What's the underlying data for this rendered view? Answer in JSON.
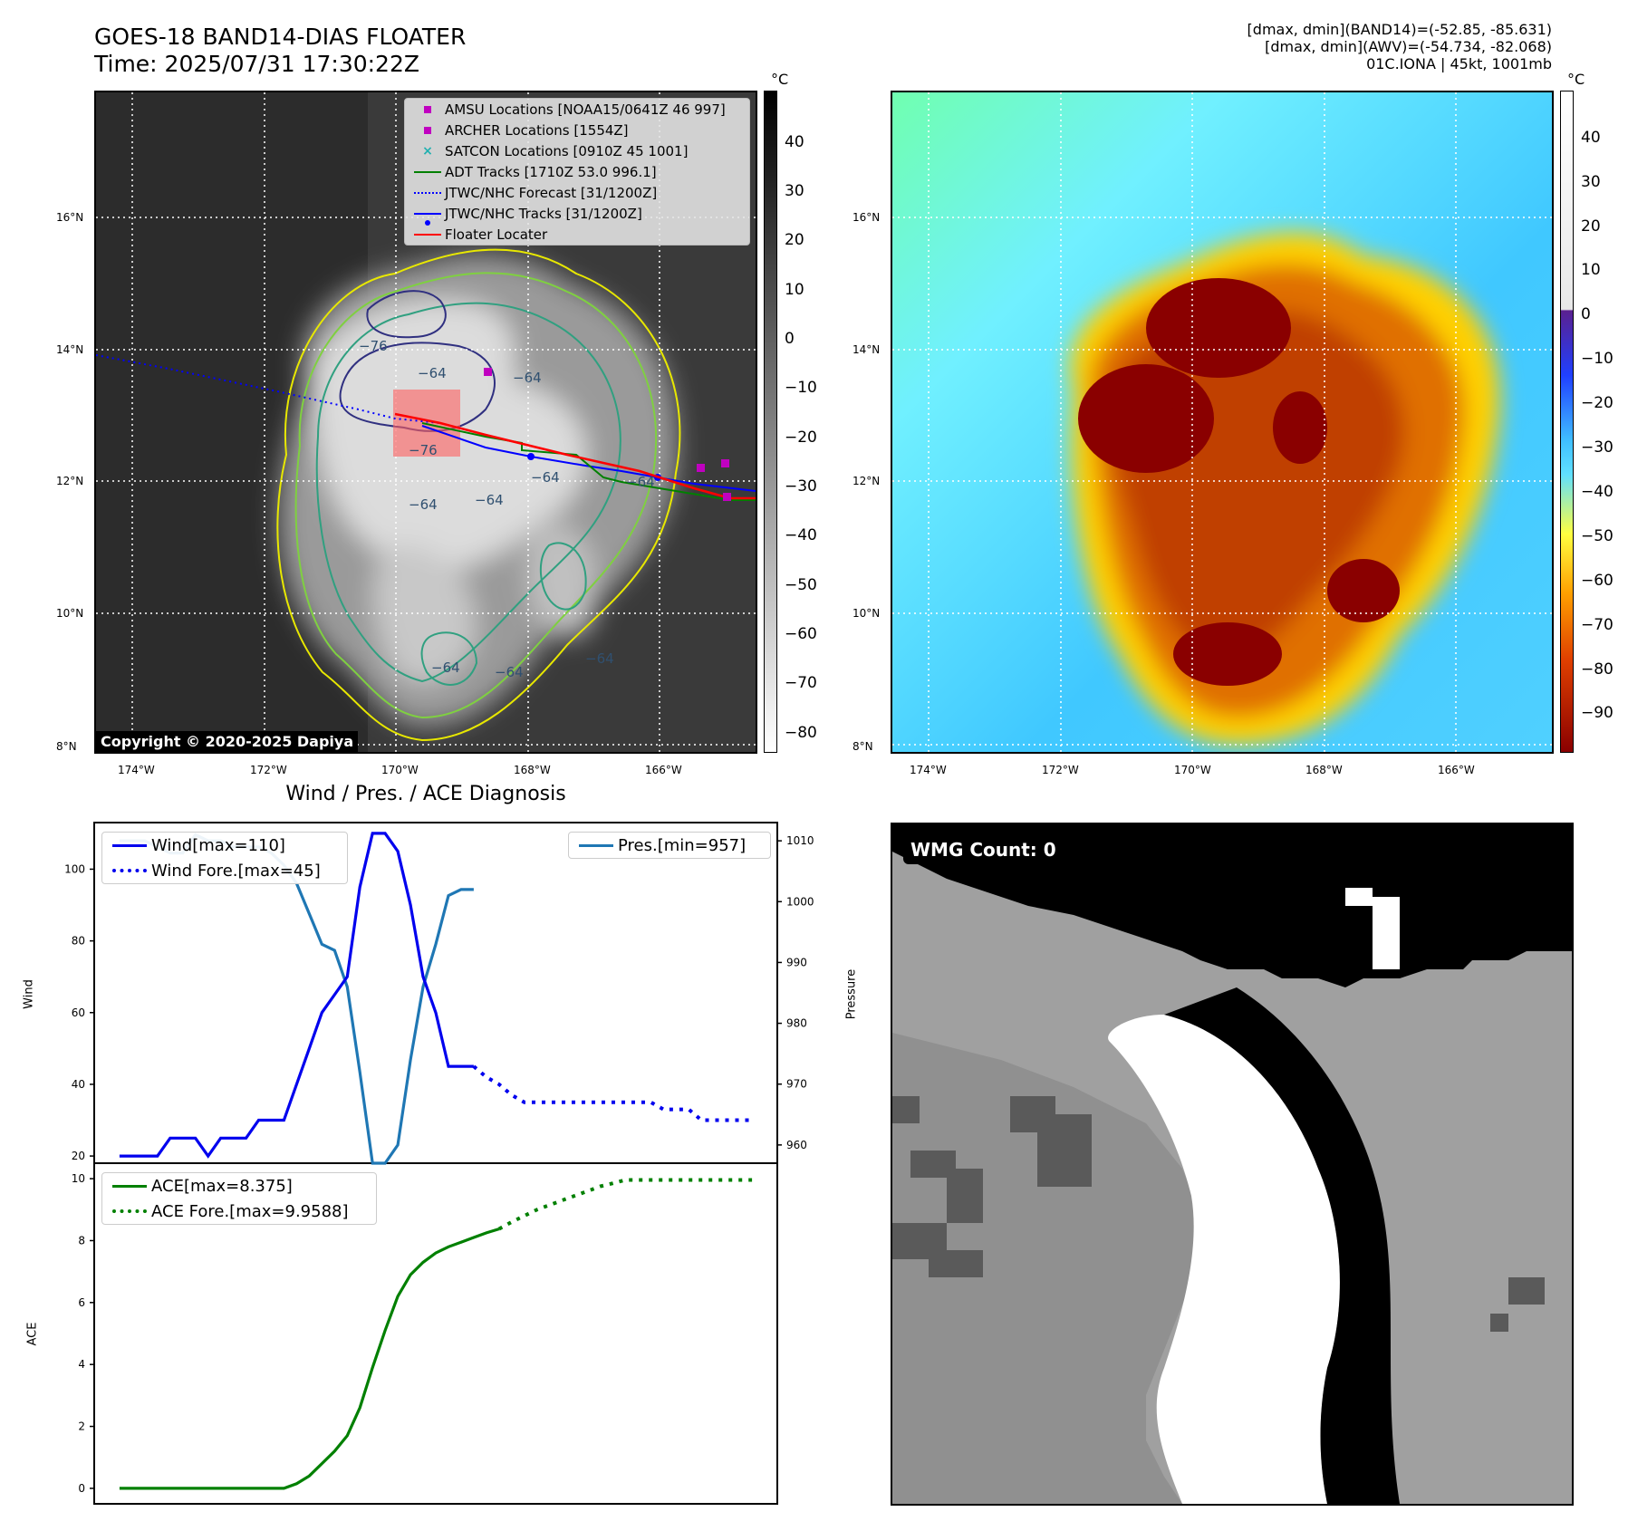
{
  "header": {
    "title_line1": "GOES-18 BAND14-DIAS FLOATER",
    "title_line2": "Time: 2025/07/31 17:30:22Z",
    "info_line1": "[dmax, dmin](BAND14)=(-52.85, -85.631)",
    "info_line2": "[dmax, dmin](AWV)=(-54.734, -82.068)",
    "info_line3": "01C.IONA | 45kt, 1001mb"
  },
  "map_axes": {
    "lat_ticks": [
      "16°N",
      "14°N",
      "12°N",
      "10°N",
      "8°N"
    ],
    "lon_ticks": [
      "174°W",
      "172°W",
      "170°W",
      "168°W",
      "166°W"
    ]
  },
  "ir_panel": {
    "colorbar_unit": "°C",
    "colorbar_ticks": [
      "40",
      "30",
      "20",
      "10",
      "0",
      "−10",
      "−20",
      "−30",
      "−40",
      "−50",
      "−60",
      "−70",
      "−80"
    ],
    "contour_labels": [
      "−76",
      "−64",
      "−64",
      "−76",
      "−64",
      "−64",
      "−64",
      "−64",
      "−64",
      "−64",
      "−64"
    ],
    "copyright": "Copyright © 2020-2025 Dapiya",
    "legend": [
      {
        "label": "AMSU Locations [NOAA15/0641Z 46 997]",
        "color": "#c000c0",
        "marker": "square"
      },
      {
        "label": "ARCHER Locations [1554Z]",
        "color": "#c000c0",
        "marker": "square"
      },
      {
        "label": "SATCON Locations [0910Z 45 1001]",
        "color": "#20b0b0",
        "marker": "x"
      },
      {
        "label": "ADT Tracks [1710Z 53.0 996.1]",
        "color": "#008000",
        "marker": "line"
      },
      {
        "label": "JTWC/NHC Forecast [31/1200Z]",
        "color": "#0000ff",
        "marker": "dotted"
      },
      {
        "label": "JTWC/NHC Tracks [31/1200Z]",
        "color": "#0000ff",
        "marker": "line-dot"
      },
      {
        "label": "Floater Locater",
        "color": "#ff0000",
        "marker": "line"
      }
    ]
  },
  "awv_panel": {
    "colorbar_unit": "°C",
    "colorbar_ticks": [
      "40",
      "30",
      "20",
      "10",
      "0",
      "−10",
      "−20",
      "−30",
      "−40",
      "−50",
      "−60",
      "−70",
      "−80",
      "−90"
    ]
  },
  "diagnosis": {
    "title": "Wind / Pres. / ACE Diagnosis",
    "wind_ylabel": "Wind",
    "pres_ylabel": "Pressure",
    "ace_ylabel": "ACE",
    "wind_ticks": [
      "100",
      "80",
      "60",
      "40",
      "20"
    ],
    "pres_ticks": [
      "1010",
      "1000",
      "990",
      "980",
      "970",
      "960"
    ],
    "ace_ticks": [
      "10",
      "8",
      "6",
      "4",
      "2",
      "0"
    ],
    "legend_wind": "Wind[max=110]",
    "legend_wind_fore": "Wind Fore.[max=45]",
    "legend_pres": "Pres.[min=957]",
    "legend_ace": "ACE[max=8.375]",
    "legend_ace_fore": "ACE Fore.[max=9.9588]"
  },
  "wmg_panel": {
    "label": "WMG Count: 0"
  },
  "colors": {
    "wind": "#0000ee",
    "pressure": "#1f77b4",
    "ace": "#008000"
  },
  "chart_data": [
    {
      "type": "line",
      "title": "Wind / Pres. / ACE Diagnosis",
      "ylabel": "Wind",
      "ylim": [
        18,
        113
      ],
      "x": [
        0,
        1,
        2,
        3,
        4,
        5,
        6,
        7,
        8,
        9,
        10,
        11,
        12,
        13,
        14,
        15,
        16,
        17,
        18,
        19,
        20,
        21,
        22,
        23,
        24,
        25,
        26,
        27,
        28,
        29,
        30,
        31,
        32,
        33,
        34,
        35,
        36,
        37,
        38,
        39,
        40,
        41,
        42,
        43,
        44,
        45,
        46,
        47,
        48,
        49,
        50
      ],
      "series": [
        {
          "name": "Wind[max=110]",
          "style": "solid",
          "values": [
            20,
            20,
            20,
            20,
            25,
            25,
            25,
            20,
            25,
            25,
            25,
            30,
            30,
            30,
            40,
            50,
            60,
            65,
            70,
            95,
            110,
            110,
            105,
            90,
            70,
            60,
            45,
            45,
            45,
            null,
            null,
            null,
            null,
            null,
            null,
            null,
            null,
            null,
            null,
            null,
            null,
            null,
            null,
            null,
            null,
            null,
            null,
            null,
            null,
            null,
            null
          ]
        },
        {
          "name": "Wind Fore.[max=45]",
          "style": "dotted",
          "values": [
            null,
            null,
            null,
            null,
            null,
            null,
            null,
            null,
            null,
            null,
            null,
            null,
            null,
            null,
            null,
            null,
            null,
            null,
            null,
            null,
            null,
            null,
            null,
            null,
            null,
            null,
            null,
            null,
            45,
            42,
            40,
            37,
            35,
            35,
            35,
            35,
            35,
            35,
            35,
            35,
            35,
            35,
            35,
            33,
            33,
            33,
            30,
            30,
            30,
            30,
            30
          ]
        }
      ]
    },
    {
      "type": "line",
      "ylabel": "Pressure",
      "ylim": [
        957,
        1013
      ],
      "x": [
        0,
        1,
        2,
        3,
        4,
        5,
        6,
        7,
        8,
        9,
        10,
        11,
        12,
        13,
        14,
        15,
        16,
        17,
        18,
        19,
        20,
        21,
        22,
        23,
        24,
        25,
        26,
        27,
        28
      ],
      "series": [
        {
          "name": "Pres.[min=957]",
          "style": "solid",
          "values": [
            1010,
            1010,
            1010,
            1009,
            1008,
            1008,
            1011,
            1010,
            1010,
            1009,
            1009,
            1009,
            1008,
            1006,
            1003,
            998,
            993,
            992,
            986,
            972,
            957,
            957,
            960,
            974,
            986,
            993,
            1001,
            1002,
            1002
          ]
        }
      ]
    },
    {
      "type": "line",
      "ylabel": "ACE",
      "ylim": [
        -0.5,
        10.5
      ],
      "x": [
        0,
        1,
        2,
        3,
        4,
        5,
        6,
        7,
        8,
        9,
        10,
        11,
        12,
        13,
        14,
        15,
        16,
        17,
        18,
        19,
        20,
        21,
        22,
        23,
        24,
        25,
        26,
        27,
        28,
        29,
        30,
        31,
        32,
        33,
        34,
        35,
        36,
        37,
        38,
        39,
        40,
        41,
        42,
        43,
        44,
        45,
        46,
        47,
        48,
        49,
        50
      ],
      "series": [
        {
          "name": "ACE[max=8.375]",
          "style": "solid",
          "values": [
            0,
            0,
            0,
            0,
            0,
            0,
            0,
            0,
            0,
            0,
            0,
            0,
            0,
            0,
            0.15,
            0.4,
            0.8,
            1.2,
            1.7,
            2.6,
            3.9,
            5.1,
            6.2,
            6.9,
            7.3,
            7.6,
            7.8,
            7.95,
            8.1,
            8.25,
            8.375,
            null,
            null,
            null,
            null,
            null,
            null,
            null,
            null,
            null,
            null,
            null,
            null,
            null,
            null,
            null,
            null,
            null,
            null,
            null,
            null
          ]
        },
        {
          "name": "ACE Fore.[max=9.9588]",
          "style": "dotted",
          "values": [
            null,
            null,
            null,
            null,
            null,
            null,
            null,
            null,
            null,
            null,
            null,
            null,
            null,
            null,
            null,
            null,
            null,
            null,
            null,
            null,
            null,
            null,
            null,
            null,
            null,
            null,
            null,
            null,
            null,
            null,
            8.375,
            8.6,
            8.8,
            9.0,
            9.15,
            9.3,
            9.45,
            9.6,
            9.75,
            9.85,
            9.96,
            9.96,
            9.96,
            9.96,
            9.96,
            9.96,
            9.96,
            9.96,
            9.96,
            9.96,
            9.96
          ]
        }
      ]
    }
  ]
}
